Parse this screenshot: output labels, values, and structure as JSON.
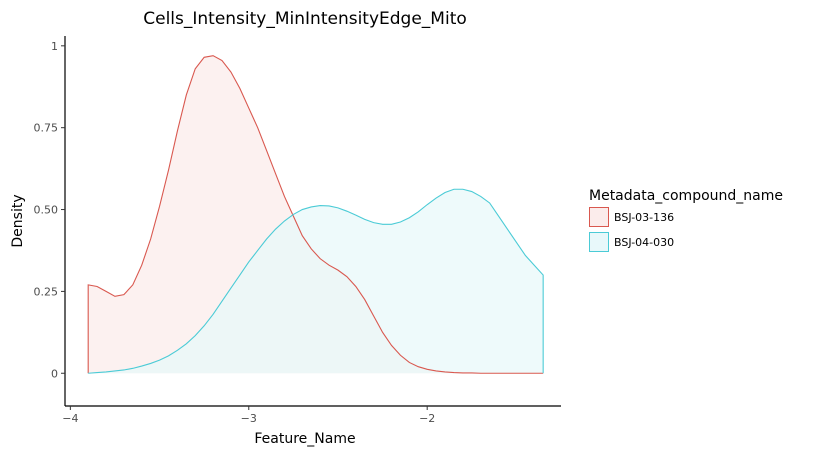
{
  "chart_data": {
    "type": "area",
    "title": "Cells_Intensity_MinIntensityEdge_Mito",
    "xlabel": "Feature_Name",
    "ylabel": "Density",
    "xlim": [
      -4.03,
      -1.25
    ],
    "ylim": [
      -0.1,
      1.03
    ],
    "xticks": [
      {
        "value": -4,
        "label": "−4"
      },
      {
        "value": -3,
        "label": "−3"
      },
      {
        "value": -2,
        "label": "−2"
      }
    ],
    "yticks": [
      {
        "value": 0,
        "label": "0"
      },
      {
        "value": 0.25,
        "label": "0.25"
      },
      {
        "value": 0.5,
        "label": "0.50"
      },
      {
        "value": 0.75,
        "label": "0.75"
      },
      {
        "value": 1,
        "label": "1"
      }
    ],
    "grid": false,
    "legend": {
      "title": "Metadata_compound_name",
      "position": "right"
    },
    "series": [
      {
        "name": "BSJ-03-136",
        "color": "#d9584f",
        "fill": "#fbeceb",
        "x": [
          -3.9,
          -3.85,
          -3.8,
          -3.75,
          -3.7,
          -3.65,
          -3.6,
          -3.55,
          -3.5,
          -3.45,
          -3.4,
          -3.35,
          -3.3,
          -3.25,
          -3.2,
          -3.15,
          -3.1,
          -3.05,
          -3.0,
          -2.95,
          -2.9,
          -2.85,
          -2.8,
          -2.75,
          -2.7,
          -2.65,
          -2.6,
          -2.55,
          -2.5,
          -2.45,
          -2.4,
          -2.35,
          -2.3,
          -2.25,
          -2.2,
          -2.15,
          -2.1,
          -2.05,
          -2.0,
          -1.95,
          -1.9,
          -1.85,
          -1.8,
          -1.75,
          -1.7,
          -1.65,
          -1.6,
          -1.55,
          -1.5,
          -1.45,
          -1.4,
          -1.35
        ],
        "y": [
          0.27,
          0.265,
          0.25,
          0.235,
          0.24,
          0.27,
          0.33,
          0.41,
          0.51,
          0.62,
          0.74,
          0.85,
          0.93,
          0.965,
          0.97,
          0.955,
          0.92,
          0.87,
          0.81,
          0.75,
          0.68,
          0.61,
          0.54,
          0.48,
          0.42,
          0.38,
          0.35,
          0.33,
          0.315,
          0.295,
          0.265,
          0.225,
          0.175,
          0.125,
          0.085,
          0.055,
          0.033,
          0.02,
          0.012,
          0.007,
          0.004,
          0.002,
          0.001,
          0.001,
          0,
          0,
          0,
          0,
          0,
          0,
          0,
          0
        ]
      },
      {
        "name": "BSJ-04-030",
        "color": "#4bcbd6",
        "fill": "#e8f8fa",
        "x": [
          -3.9,
          -3.85,
          -3.8,
          -3.75,
          -3.7,
          -3.65,
          -3.6,
          -3.55,
          -3.5,
          -3.45,
          -3.4,
          -3.35,
          -3.3,
          -3.25,
          -3.2,
          -3.15,
          -3.1,
          -3.05,
          -3.0,
          -2.95,
          -2.9,
          -2.85,
          -2.8,
          -2.75,
          -2.7,
          -2.65,
          -2.6,
          -2.55,
          -2.5,
          -2.45,
          -2.4,
          -2.35,
          -2.3,
          -2.25,
          -2.2,
          -2.15,
          -2.1,
          -2.05,
          -2.0,
          -1.95,
          -1.9,
          -1.85,
          -1.8,
          -1.75,
          -1.7,
          -1.65,
          -1.6,
          -1.55,
          -1.5,
          -1.45,
          -1.4,
          -1.35
        ],
        "y": [
          0,
          0.002,
          0.004,
          0.007,
          0.01,
          0.015,
          0.022,
          0.03,
          0.04,
          0.053,
          0.07,
          0.09,
          0.115,
          0.145,
          0.18,
          0.22,
          0.26,
          0.3,
          0.34,
          0.375,
          0.41,
          0.44,
          0.465,
          0.485,
          0.5,
          0.508,
          0.512,
          0.511,
          0.505,
          0.495,
          0.483,
          0.47,
          0.46,
          0.455,
          0.455,
          0.462,
          0.475,
          0.493,
          0.515,
          0.535,
          0.552,
          0.562,
          0.562,
          0.555,
          0.54,
          0.52,
          0.48,
          0.44,
          0.4,
          0.36,
          0.33,
          0.3
        ]
      }
    ]
  }
}
